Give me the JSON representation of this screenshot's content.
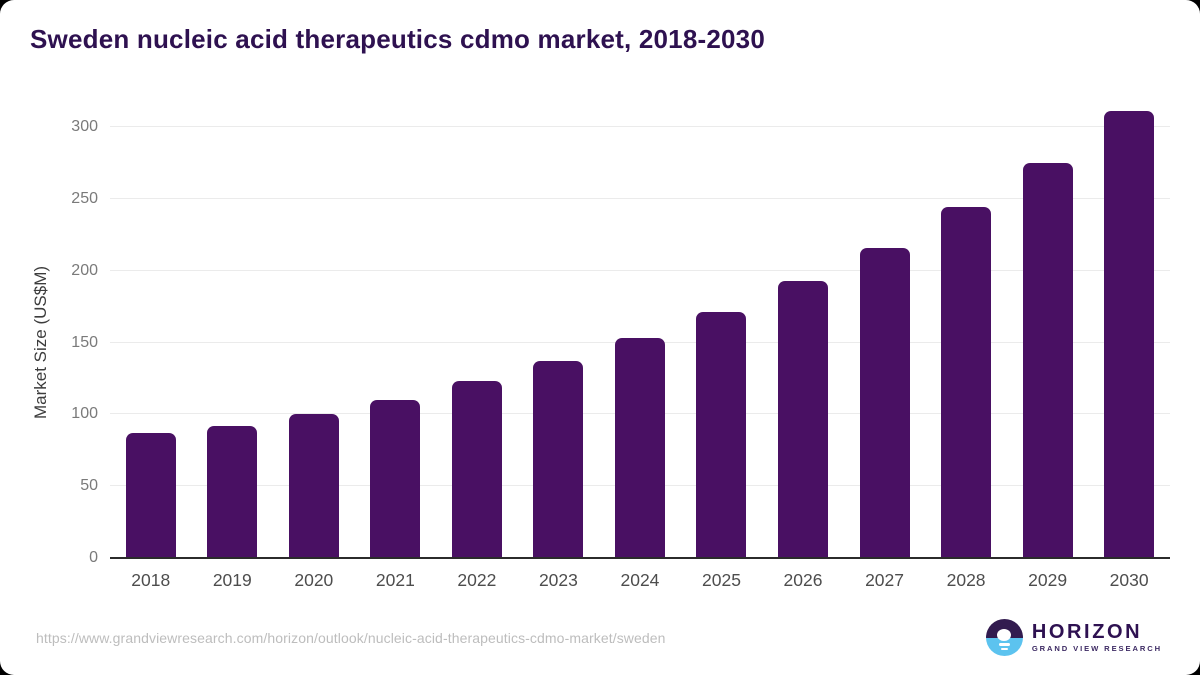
{
  "header": {
    "title": "Sweden nucleic acid therapeutics cdmo market, 2018-2030"
  },
  "chart_data": {
    "type": "bar",
    "title": "Sweden nucleic acid therapeutics cdmo market, 2018-2030",
    "categories": [
      "2018",
      "2019",
      "2020",
      "2021",
      "2022",
      "2023",
      "2024",
      "2025",
      "2026",
      "2027",
      "2028",
      "2029",
      "2030"
    ],
    "values": [
      87,
      92,
      100,
      110,
      123,
      137,
      153,
      171,
      193,
      216,
      244,
      275,
      311
    ],
    "xlabel": "",
    "ylabel": "Market Size (US$M)",
    "ylim": [
      0,
      315.3
    ],
    "yticks": [
      0,
      50,
      100,
      150,
      200,
      250,
      300
    ],
    "grid": true,
    "legend": false,
    "bar_color": "#491063"
  },
  "footer": {
    "source_url": "https://www.grandviewresearch.com/horizon/outlook/nucleic-acid-therapeutics-cdmo-market/sweden",
    "logo": {
      "name": "HORIZON",
      "subtitle": "GRAND VIEW RESEARCH",
      "icon": "horizon-sun-over-water-icon",
      "purple": "#321b4f",
      "blue": "#5cc3ef"
    }
  },
  "colors": {
    "title": "#2e1150",
    "bar": "#491063",
    "gridline": "#ebebeb",
    "axis_line": "#2b2b2b",
    "y_tick": "#7a7a7a",
    "x_tick": "#4d4d4d",
    "url_text": "#bdbdbd",
    "background": "#ffffff"
  }
}
